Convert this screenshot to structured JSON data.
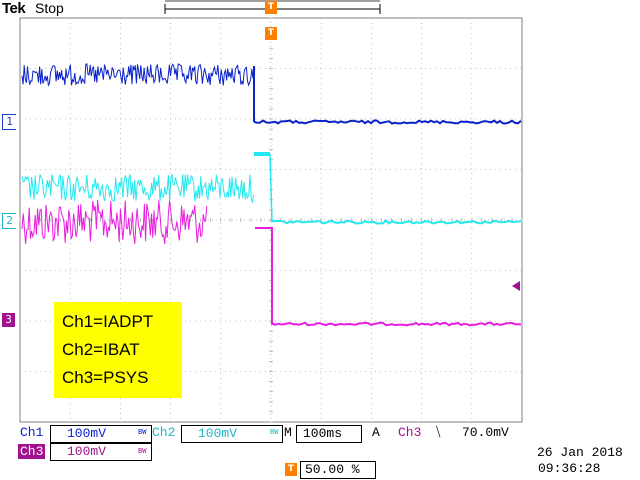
{
  "header": {
    "brand": "Tek",
    "acquisition_state": "Stop"
  },
  "trigger_marker": {
    "label": "T",
    "color": "#ff7f00"
  },
  "channel_markers": [
    {
      "id": "1",
      "color": "#1a3cc7"
    },
    {
      "id": "2",
      "color": "#1fb5c7"
    },
    {
      "id": "3",
      "color": "#a0128f"
    }
  ],
  "legend": {
    "lines": [
      "Ch1=IADPT",
      "Ch2=IBAT",
      "Ch3=PSYS"
    ],
    "background": "#ffff00"
  },
  "readout": {
    "ch1_label": "Ch1",
    "ch1_scale": "100mV",
    "ch1_bw": "BW",
    "ch2_label": "Ch2",
    "ch2_scale": "100mV",
    "ch2_bw": "BW",
    "timebase_label": "M",
    "timebase_value": "100ms",
    "trigger_mode": "A",
    "trigger_source": "Ch3",
    "trigger_slope": "⧹",
    "trigger_level": "70.0mV",
    "ch3_label": "Ch3",
    "ch3_scale": "100mV",
    "ch3_bw": "BW",
    "trigger_position_label": "T",
    "trigger_position": "50.00 %",
    "date": "26 Jan  2018",
    "time": "09:36:28"
  },
  "colors": {
    "ch1": "#0a22c9",
    "ch2": "#22e8f0",
    "ch3": "#e81ee0",
    "grid": "#b0b0b0",
    "trigger": "#ff7f00"
  }
}
